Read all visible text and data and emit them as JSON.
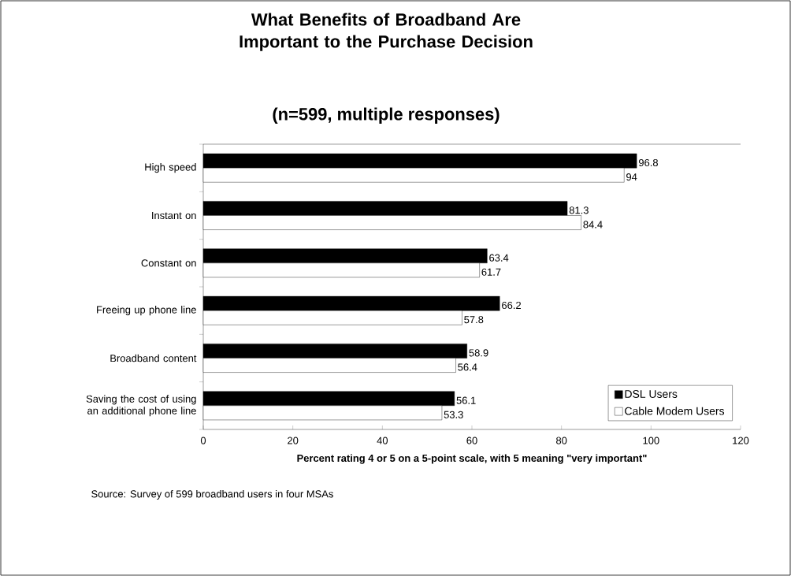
{
  "chart_data": {
    "type": "bar",
    "orientation": "horizontal",
    "title": "What Benefits of Broadband Are Important to the Purchase Decision",
    "subtitle": "(n=599, multiple responses)",
    "categories": [
      "High speed",
      "Instant on",
      "Constant on",
      "Freeing up phone line",
      "Broadband content",
      "Saving the cost of using an additional phone line"
    ],
    "series": [
      {
        "name": "DSL Users",
        "color": "#000000",
        "values": [
          96.8,
          81.3,
          63.4,
          66.2,
          58.9,
          56.1
        ]
      },
      {
        "name": "Cable Modem Users",
        "color": "#ffffff",
        "values": [
          94,
          84.4,
          61.7,
          57.8,
          56.4,
          53.3
        ]
      }
    ],
    "xlim": [
      0,
      120
    ],
    "xticks": [
      0,
      20,
      40,
      60,
      80,
      100,
      120
    ],
    "xlabel": "Percent rating 4 or 5 on a 5-point scale, with 5 meaning \"very important\"",
    "annotations": [
      "Source: Survey of 599 broadband users in four MSAs"
    ],
    "data_labels": true,
    "legend": "bottom right"
  }
}
